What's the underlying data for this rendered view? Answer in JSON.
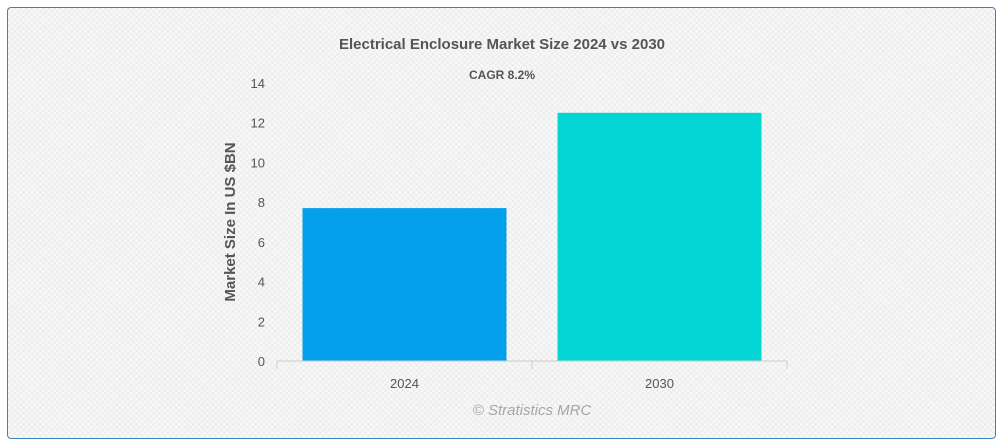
{
  "chart_data": {
    "type": "bar",
    "title": "Electrical Enclosure Market Size 2024 vs 2030",
    "subtitle": "CAGR 8.2%",
    "ylabel": "Market Size In US $BN",
    "xlabel": "",
    "categories": [
      "2024",
      "2030"
    ],
    "values": [
      7.7,
      12.5
    ],
    "colors": [
      "#039fea",
      "#03d4d4"
    ],
    "ylim": [
      0,
      14
    ],
    "yticks": [
      0,
      2,
      4,
      6,
      8,
      10,
      12,
      14
    ],
    "grid": false,
    "legend": "none"
  },
  "credit": "© Stratistics MRC"
}
